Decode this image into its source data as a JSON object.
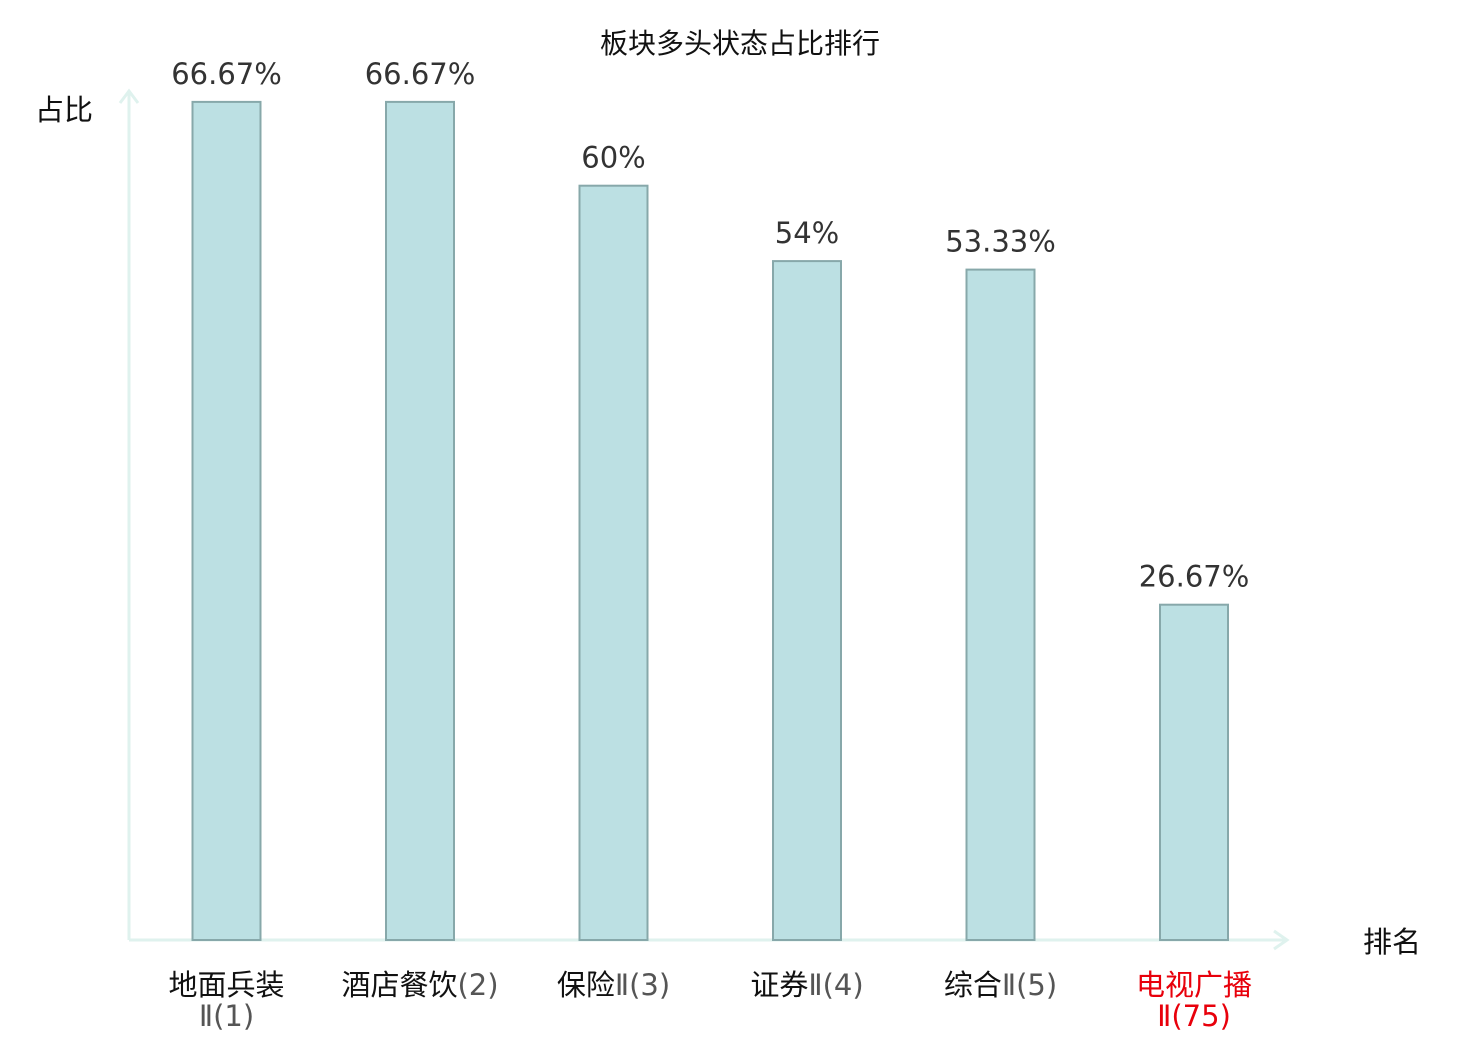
{
  "chart_data": {
    "type": "bar",
    "title": "板块多头状态占比排行",
    "ylabel": "占比",
    "xlabel": "排名",
    "ylim": [
      0,
      70
    ],
    "grid": false,
    "categories": [
      {
        "name": "地面兵装",
        "suffix": "Ⅱ(1)",
        "highlight": false
      },
      {
        "name": "酒店餐饮",
        "suffix": "(2)",
        "highlight": false
      },
      {
        "name": "保险",
        "suffix": "Ⅱ(3)",
        "highlight": false
      },
      {
        "name": "证券",
        "suffix": "Ⅱ(4)",
        "highlight": false
      },
      {
        "name": "综合",
        "suffix": "Ⅱ(5)",
        "highlight": false
      },
      {
        "name": "电视广播",
        "suffix": "Ⅱ(75)",
        "highlight": true
      }
    ],
    "values": [
      66.67,
      66.67,
      60,
      54,
      53.33,
      26.67
    ],
    "value_labels": [
      "66.67%",
      "66.67%",
      "60%",
      "54%",
      "53.33%",
      "26.67%"
    ]
  },
  "colors": {
    "bar_fill": "#bce0e3",
    "bar_stroke": "#87a8aa",
    "axis": "#dff2ee",
    "text": "#111111",
    "label_text": "#333333",
    "suffix_text": "#555555",
    "highlight": "#e8000b"
  }
}
